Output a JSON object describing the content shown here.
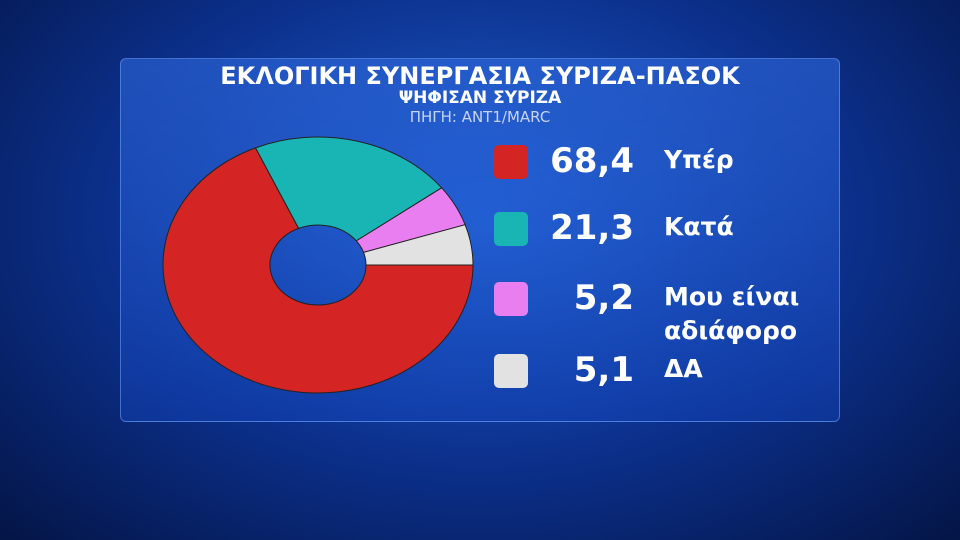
{
  "chart_data": {
    "type": "pie",
    "title": "ΕΚΛΟΓΙΚΗ ΣΥΝΕΡΓΑΣΙΑ ΣΥΡΙΖΑ-ΠΑΣΟΚ",
    "subtitle": "ΨΗΦΙΣΑΝ ΣΥΡΙΖΑ",
    "source": "ΠΗΓΗ: ΑΝΤ1/MARC",
    "categories": [
      "Υπέρ",
      "Κατά",
      "Μου είναι αδιάφορο",
      "ΔΑ"
    ],
    "values": [
      68.4,
      21.3,
      5.2,
      5.1
    ],
    "value_labels": [
      "68,4",
      "21,3",
      "5,2",
      "5,1"
    ],
    "colors": [
      "#d42424",
      "#19b4b4",
      "#e87ef0",
      "#e2e2e2"
    ]
  }
}
